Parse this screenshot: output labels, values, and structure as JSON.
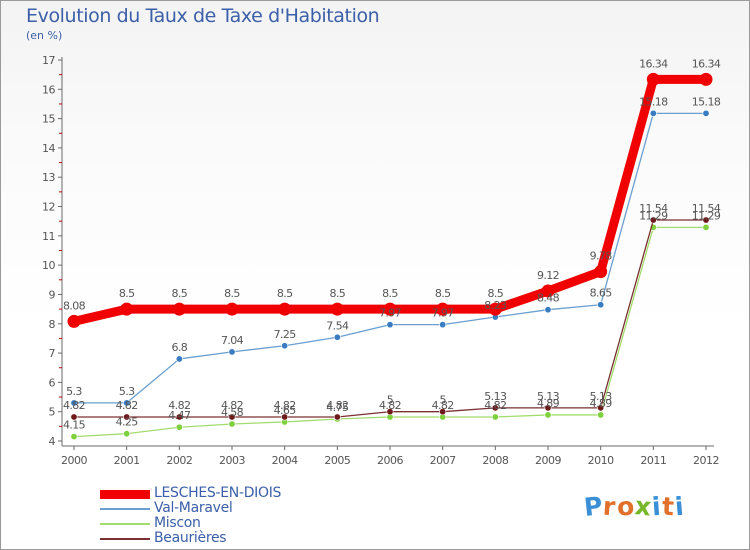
{
  "title": "Evolution du Taux de Taxe d'Habitation",
  "unit_label": "(en %)",
  "logo": {
    "letters": [
      "P",
      "r",
      "o",
      "x",
      "i",
      "t",
      "i"
    ],
    "colors": [
      "#3a8fd6",
      "#e0702a",
      "#e0702a",
      "#77b82a",
      "#3a8fd6",
      "#e0702a",
      "#3a8fd6"
    ]
  },
  "chart_data": {
    "type": "line",
    "title": "Evolution du Taux de Taxe d'Habitation",
    "ylabel": "(en %)",
    "xlabel": "",
    "categories": [
      "2000",
      "2001",
      "2002",
      "2003",
      "2004",
      "2005",
      "2006",
      "2007",
      "2008",
      "2009",
      "2010",
      "2011",
      "2012"
    ],
    "ylim": [
      4,
      17
    ],
    "yticks": [
      "4",
      "5",
      "6",
      "7",
      "8",
      "9",
      "10",
      "11",
      "12",
      "13",
      "14",
      "15",
      "16",
      "17"
    ],
    "grid": false,
    "legend_position": "bottom-left",
    "series": [
      {
        "name": "LESCHES-EN-DIOIS",
        "color": "#f00000",
        "emphasis": "thick",
        "values": [
          8.08,
          8.5,
          8.5,
          8.5,
          8.5,
          8.5,
          8.5,
          8.5,
          8.5,
          9.12,
          9.78,
          16.34,
          16.34
        ],
        "labels": [
          "8.08",
          "8.5",
          "8.5",
          "8.5",
          "8.5",
          "8.5",
          "8.5",
          "8.5",
          "8.5",
          "9.12",
          "9.78",
          "16.34",
          "16.34"
        ]
      },
      {
        "name": "Val-Maravel",
        "color": "#6a9fd0",
        "marker": "#3a7cc4",
        "values": [
          5.3,
          5.3,
          6.8,
          7.04,
          7.25,
          7.54,
          7.97,
          7.97,
          8.23,
          8.48,
          8.65,
          15.18,
          15.18
        ],
        "labels": [
          "5.3",
          "5.3",
          "6.8",
          "7.04",
          "7.25",
          "7.54",
          "7.97",
          "7.97",
          "8.23",
          "8.48",
          "8.65",
          "15.18",
          "15.18"
        ]
      },
      {
        "name": "Miscon",
        "color": "#a3dc6e",
        "marker": "#7ed03c",
        "values": [
          4.15,
          4.25,
          4.47,
          4.58,
          4.65,
          4.75,
          4.82,
          4.82,
          4.82,
          4.89,
          4.89,
          11.29,
          11.29
        ],
        "labels": [
          "4.15",
          "4.25",
          "4.47",
          "4.58",
          "4.65",
          "4.75",
          "4.82",
          "4.82",
          "4.82",
          "4.89",
          "4.89",
          "11.29",
          "11.29"
        ]
      },
      {
        "name": "Beaurières",
        "color": "#7a3030",
        "marker": "#6e1a1a",
        "values": [
          4.82,
          4.82,
          4.82,
          4.82,
          4.82,
          4.82,
          5.0,
          5.0,
          5.13,
          5.13,
          5.13,
          11.54,
          11.54
        ],
        "labels": [
          "4.82",
          "4.82",
          "4.82",
          "4.82",
          "4.82",
          "4.82",
          "5",
          "5",
          "5.13",
          "5.13",
          "5.13",
          "11.54",
          "11.54"
        ]
      }
    ]
  }
}
